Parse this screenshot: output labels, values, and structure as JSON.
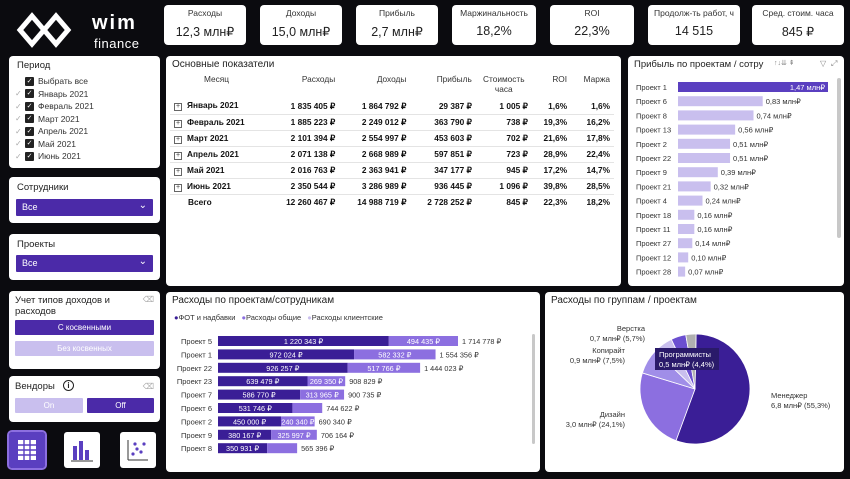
{
  "logo": {
    "brand": "wim",
    "sub": "finance"
  },
  "kpis": [
    {
      "title": "Расходы",
      "value": "12,3 млн₽"
    },
    {
      "title": "Доходы",
      "value": "15,0 млн₽"
    },
    {
      "title": "Прибыль",
      "value": "2,7 млн₽"
    },
    {
      "title": "Маржинальность",
      "value": "18,2%"
    },
    {
      "title": "ROI",
      "value": "22,3%"
    },
    {
      "title": "Продолж-ть работ, ч",
      "value": "14 515"
    },
    {
      "title": "Сред. стоим. часа",
      "value": "845 ₽"
    }
  ],
  "period": {
    "title": "Период",
    "items": [
      "Выбрать все",
      "Январь 2021",
      "Февраль 2021",
      "Март 2021",
      "Апрель 2021",
      "Май 2021",
      "Июнь 2021"
    ]
  },
  "employees": {
    "title": "Сотрудники",
    "value": "Все"
  },
  "projects": {
    "title": "Проекты",
    "value": "Все"
  },
  "income_types": {
    "title": "Учет типов доходов и расходов",
    "btn_on": "С косвенными",
    "btn_off": "Без косвенных"
  },
  "vendors": {
    "title": "Вендоры",
    "info": "i",
    "btn_on": "On",
    "btn_off": "Off"
  },
  "main_table": {
    "title": "Основные показатели",
    "headers": [
      "Месяц",
      "Расходы",
      "Доходы",
      "Прибыль",
      "Стоимость часа",
      "ROI",
      "Маржа"
    ],
    "rows": [
      [
        "Январь 2021",
        "1 835 405 ₽",
        "1 864 792 ₽",
        "29 387 ₽",
        "1 005 ₽",
        "1,6%",
        "1,6%"
      ],
      [
        "Февраль 2021",
        "1 885 223 ₽",
        "2 249 012 ₽",
        "363 790 ₽",
        "738 ₽",
        "19,3%",
        "16,2%"
      ],
      [
        "Март 2021",
        "2 101 394 ₽",
        "2 554 997 ₽",
        "453 603 ₽",
        "702 ₽",
        "21,6%",
        "17,8%"
      ],
      [
        "Апрель 2021",
        "2 071 138 ₽",
        "2 668 989 ₽",
        "597 851 ₽",
        "723 ₽",
        "28,9%",
        "22,4%"
      ],
      [
        "Май 2021",
        "2 016 763 ₽",
        "2 363 941 ₽",
        "347 177 ₽",
        "945 ₽",
        "17,2%",
        "14,7%"
      ],
      [
        "Июнь 2021",
        "2 350 544 ₽",
        "3 286 989 ₽",
        "936 445 ₽",
        "1 096 ₽",
        "39,8%",
        "28,5%"
      ]
    ],
    "total": [
      "Всего",
      "12 260 467 ₽",
      "14 988 719 ₽",
      "2 728 252 ₽",
      "845 ₽",
      "22,3%",
      "18,2%"
    ]
  },
  "profit_by_project": {
    "title": "Прибыль по проектам / сотру",
    "items": [
      {
        "name": "Проект 1",
        "value": 1.47,
        "label": "1,47 млн₽"
      },
      {
        "name": "Проект 6",
        "value": 0.83,
        "label": "0,83 млн₽"
      },
      {
        "name": "Проект 8",
        "value": 0.74,
        "label": "0,74 млн₽"
      },
      {
        "name": "Проект 13",
        "value": 0.56,
        "label": "0,56 млн₽"
      },
      {
        "name": "Проект 2",
        "value": 0.51,
        "label": "0,51 млн₽"
      },
      {
        "name": "Проект 22",
        "value": 0.51,
        "label": "0,51 млн₽"
      },
      {
        "name": "Проект 9",
        "value": 0.39,
        "label": "0,39 млн₽"
      },
      {
        "name": "Проект 21",
        "value": 0.32,
        "label": "0,32 млн₽"
      },
      {
        "name": "Проект 4",
        "value": 0.24,
        "label": "0,24 млн₽"
      },
      {
        "name": "Проект 18",
        "value": 0.16,
        "label": "0,16 млн₽"
      },
      {
        "name": "Проект 11",
        "value": 0.16,
        "label": "0,16 млн₽"
      },
      {
        "name": "Проект 27",
        "value": 0.14,
        "label": "0,14 млн₽"
      },
      {
        "name": "Проект 12",
        "value": 0.1,
        "label": "0,10 млн₽"
      },
      {
        "name": "Проект 28",
        "value": 0.07,
        "label": "0,07 млн₽"
      }
    ]
  },
  "expenses_by_project": {
    "title": "Расходы по проектам/сотрудникам",
    "legend": [
      "ФОТ и надбавки",
      "Расходы общие",
      "Расходы клиентские"
    ],
    "colors": [
      "#3a1e96",
      "#8c6fe0",
      "#c9bfee"
    ],
    "items": [
      {
        "name": "Проект 5",
        "fot": 1220343,
        "general": 494435,
        "fot_label": "1 220 343 ₽",
        "gen_label": "494 435 ₽",
        "total_label": "1 714 778 ₽"
      },
      {
        "name": "Проект 1",
        "fot": 972024,
        "general": 582332,
        "fot_label": "972 024 ₽",
        "gen_label": "582 332 ₽",
        "total_label": "1 554 356 ₽"
      },
      {
        "name": "Проект 22",
        "fot": 926257,
        "general": 517766,
        "fot_label": "926 257 ₽",
        "gen_label": "517 766 ₽",
        "total_label": "1 444 023 ₽"
      },
      {
        "name": "Проект 23",
        "fot": 639479,
        "general": 269350,
        "fot_label": "639 479 ₽",
        "gen_label": "269 350 ₽",
        "total_label": "908 829 ₽"
      },
      {
        "name": "Проект 7",
        "fot": 586770,
        "general": 313965,
        "fot_label": "586 770 ₽",
        "gen_label": "313 965 ₽",
        "total_label": "900 735 ₽"
      },
      {
        "name": "Проект 6",
        "fot": 531746,
        "general": 212876,
        "fot_label": "531 746 ₽",
        "gen_label": "",
        "total_label": "744 622 ₽"
      },
      {
        "name": "Проект 2",
        "fot": 450000,
        "general": 240340,
        "fot_label": "450 000 ₽",
        "gen_label": "240 340 ₽",
        "total_label": "690 340 ₽"
      },
      {
        "name": "Проект 9",
        "fot": 380167,
        "general": 325997,
        "fot_label": "380 167 ₽",
        "gen_label": "325 997 ₽",
        "total_label": "706 164 ₽"
      },
      {
        "name": "Проект 8",
        "fot": 350931,
        "general": 214465,
        "fot_label": "350 931 ₽",
        "gen_label": "",
        "total_label": "565 396 ₽"
      }
    ]
  },
  "expenses_by_group": {
    "title": "Расходы по группам / проектам",
    "slices": [
      {
        "name": "Менеджер",
        "label": "Менеджер",
        "value_label": "6,8 млн₽ (55,3%)",
        "pct": 55.3,
        "color": "#3a1e96"
      },
      {
        "name": "Дизайн",
        "label": "Дизайн",
        "value_label": "3,0 млн₽ (24,1%)",
        "pct": 24.1,
        "color": "#8c6fe0"
      },
      {
        "name": "Копирайт",
        "label": "Копирайт",
        "value_label": "0,9 млн₽ (7,5%)",
        "pct": 7.5,
        "color": "#a08ee8"
      },
      {
        "name": "Верстка",
        "label": "Верстка",
        "value_label": "0,7 млн₽ (5,7%)",
        "pct": 5.7,
        "color": "#c9bfee"
      },
      {
        "name": "Программисты",
        "label": "Программисты",
        "value_label": "0,5 млн₽ (4,4%)",
        "pct": 4.4,
        "color": "#6b4fd0"
      },
      {
        "name": "Прочее",
        "label": "",
        "value_label": "",
        "pct": 3.0,
        "color": "#b0b0b0"
      }
    ]
  },
  "chart_data": [
    {
      "type": "bar",
      "title": "Прибыль по проектам / сотру",
      "categories": [
        "Проект 1",
        "Проект 6",
        "Проект 8",
        "Проект 13",
        "Проект 2",
        "Проект 22",
        "Проект 9",
        "Проект 21",
        "Проект 4",
        "Проект 18",
        "Проект 11",
        "Проект 27",
        "Проект 12",
        "Проект 28"
      ],
      "values": [
        1.47,
        0.83,
        0.74,
        0.56,
        0.51,
        0.51,
        0.39,
        0.32,
        0.24,
        0.16,
        0.16,
        0.14,
        0.1,
        0.07
      ],
      "xlabel": "",
      "ylabel": "млн₽"
    },
    {
      "type": "bar",
      "title": "Расходы по проектам/сотрудникам",
      "categories": [
        "Проект 5",
        "Проект 1",
        "Проект 22",
        "Проект 23",
        "Проект 7",
        "Проект 6",
        "Проект 2",
        "Проект 9",
        "Проект 8"
      ],
      "series": [
        {
          "name": "ФОТ и надбавки",
          "values": [
            1220343,
            972024,
            926257,
            639479,
            586770,
            531746,
            450000,
            380167,
            350931
          ]
        },
        {
          "name": "Расходы общие",
          "values": [
            494435,
            582332,
            517766,
            269350,
            313965,
            212876,
            240340,
            325997,
            214465
          ]
        }
      ]
    },
    {
      "type": "pie",
      "title": "Расходы по группам / проектам",
      "categories": [
        "Менеджер",
        "Дизайн",
        "Копирайт",
        "Верстка",
        "Программисты",
        "Прочее"
      ],
      "values": [
        55.3,
        24.1,
        7.5,
        5.7,
        4.4,
        3.0
      ]
    }
  ]
}
